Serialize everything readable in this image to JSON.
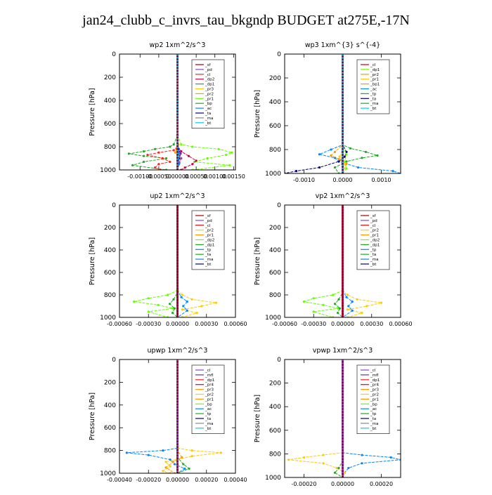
{
  "figure_title": "jan24_clubb_c_invrs_tau_bkgndp  BUDGET at275E,-17N",
  "chart_data": [
    {
      "type": "line",
      "title": "wp2   1xm^2/s^3",
      "ylabel": "Pressure [hPa]",
      "xlim": [
        -0.00155,
        0.00155
      ],
      "ylim": [
        1000,
        0
      ],
      "xticks": [
        -0.001,
        -0.0005,
        0.0,
        0.0005,
        0.001,
        0.0015
      ],
      "xtick_labels": [
        "-0.00100",
        "-0.00050",
        "0.00000",
        "0.00050",
        "0.00100",
        "0.00150"
      ],
      "yticks": [
        0,
        200,
        400,
        600,
        800,
        1000
      ],
      "legend": [
        "_sf",
        "_pd",
        "_cl",
        "_dp2",
        "_dp1",
        "_pr3",
        "_pr2",
        "_pr1",
        "_bp",
        "_ac",
        "_ta",
        "_ma",
        "_bt"
      ],
      "series": [
        {
          "name": "_pr2",
          "color": "#ff9900",
          "p": [
            0,
            700,
            780,
            820,
            850,
            870,
            900,
            930,
            960,
            1000
          ],
          "x": [
            0,
            0,
            2e-05,
            -3e-05,
            -6e-05,
            3e-05,
            8e-05,
            5e-05,
            2e-05,
            0
          ]
        },
        {
          "name": "_pr1",
          "color": "#66ff00",
          "p": [
            0,
            700,
            780,
            800,
            820,
            850,
            870,
            900,
            930,
            960,
            1000
          ],
          "x": [
            0,
            0,
            0.0001,
            0.0004,
            0.0011,
            0.00145,
            0.0013,
            0.0008,
            0.00045,
            0.0014,
            0.0004
          ]
        },
        {
          "name": "_dp1",
          "color": "#22aa22",
          "p": [
            0,
            700,
            780,
            800,
            820,
            840,
            860,
            880,
            900,
            930,
            960,
            1000
          ],
          "x": [
            0,
            0,
            -0.0001,
            -0.0002,
            -0.0006,
            -0.0009,
            -0.0013,
            -0.0009,
            -0.0003,
            -0.0009,
            -0.0012,
            -0.0003
          ]
        },
        {
          "name": "_cl",
          "color": "#ff2222",
          "p": [
            0,
            700,
            800,
            830,
            850,
            870,
            900,
            930,
            950,
            980,
            1000
          ],
          "x": [
            0,
            0,
            0,
            -0.0001,
            -0.0005,
            -0.0008,
            -0.0004,
            -0.0002,
            -0.0005,
            -0.0006,
            -0.00045
          ]
        },
        {
          "name": "_dp2",
          "color": "#cc0044",
          "p": [
            0,
            700,
            800,
            840,
            880,
            920,
            950,
            980,
            1000
          ],
          "x": [
            0,
            0,
            0,
            0.0001,
            0.0003,
            0.0005,
            0.0004,
            0.0002,
            0.0001
          ]
        },
        {
          "name": "_ta",
          "color": "#000080",
          "p": [
            0,
            700,
            820,
            860,
            900,
            940,
            1000
          ],
          "x": [
            0,
            0,
            3e-05,
            8e-05,
            4e-05,
            3e-05,
            0
          ]
        },
        {
          "name": "_pd",
          "color": "#8844cc",
          "p": [
            0,
            800,
            860,
            900,
            940,
            1000
          ],
          "x": [
            0,
            0,
            6e-05,
            0.0001,
            5e-05,
            0
          ]
        },
        {
          "name": "_ac",
          "color": "#0088ff",
          "p": [
            0,
            700,
            860,
            900,
            950,
            1000
          ],
          "x": [
            0,
            0,
            3e-05,
            2e-05,
            4e-05,
            0
          ]
        },
        {
          "name": "_sf",
          "color": "#aa0000",
          "p": [
            0,
            1000
          ],
          "x": [
            0,
            0
          ]
        },
        {
          "name": "_bt",
          "color": "#00ccee",
          "p": [
            0,
            1000
          ],
          "x": [
            0,
            0
          ]
        }
      ]
    },
    {
      "type": "line",
      "title": "wp3   1xm^{3} s^{-4}",
      "ylabel": "Pressure [hPa]",
      "xlim": [
        -0.0015,
        0.0015
      ],
      "ylim": [
        1000,
        0
      ],
      "xticks": [
        -0.001,
        0.0,
        0.001
      ],
      "xtick_labels": [
        "-0.0010",
        "0.0000",
        "0.0010"
      ],
      "yticks": [
        0,
        200,
        400,
        600,
        800,
        1000
      ],
      "legend": [
        "_cl",
        "_dp1",
        "_pr2",
        "_pr1",
        "_bp1",
        "_ac",
        "_tp",
        "_ta",
        "_ma",
        "_bt"
      ],
      "series": [
        {
          "name": "_ac",
          "color": "#0088ff",
          "p": [
            0,
            760,
            800,
            840,
            870,
            900,
            950,
            980,
            1000
          ],
          "x": [
            0,
            0,
            -0.0003,
            -0.0006,
            -0.0002,
            -0.0001,
            0.0004,
            0.0013,
            0.0015
          ]
        },
        {
          "name": "_tp",
          "color": "#22aa22",
          "p": [
            0,
            760,
            790,
            820,
            850,
            870,
            900,
            950,
            1000
          ],
          "x": [
            0,
            0,
            0.0002,
            0.0006,
            0.0009,
            0.0005,
            0.0001,
            -0.0002,
            -0.0001
          ]
        },
        {
          "name": "_ta",
          "color": "#000080",
          "p": [
            0,
            760,
            820,
            860,
            900,
            950,
            980,
            1000
          ],
          "x": [
            0,
            0,
            0.0001,
            5e-05,
            -0.0001,
            -0.0006,
            -0.0012,
            -0.0015
          ]
        },
        {
          "name": "_pr2",
          "color": "#ff9900",
          "p": [
            0,
            760,
            820,
            850,
            880,
            920,
            1000
          ],
          "x": [
            0,
            0,
            -0.0002,
            -0.0003,
            -0.0001,
            0.0001,
            0
          ]
        },
        {
          "name": "_dp1",
          "color": "#66ff00",
          "p": [
            0,
            780,
            840,
            900,
            960,
            1000
          ],
          "x": [
            0,
            0,
            0.0001,
            5e-05,
            0.0001,
            0
          ]
        },
        {
          "name": "_pr1",
          "color": "#ffcc00",
          "p": [
            0,
            800,
            860,
            920,
            1000
          ],
          "x": [
            0,
            0,
            -8e-05,
            5e-05,
            0
          ]
        },
        {
          "name": "_cl",
          "color": "#cc0000",
          "p": [
            0,
            1000
          ],
          "x": [
            0,
            0
          ]
        },
        {
          "name": "_bt",
          "color": "#00ccee",
          "p": [
            0,
            1000
          ],
          "x": [
            0,
            0
          ]
        }
      ]
    },
    {
      "type": "line",
      "title": "up2   1xm^2/s^3",
      "ylabel": "Pressure [hPa]",
      "xlim": [
        -0.0006,
        0.0006
      ],
      "ylim": [
        1000,
        0
      ],
      "xticks": [
        -0.0006,
        -0.0003,
        0.0,
        0.0003,
        0.0006
      ],
      "xtick_labels": [
        "-0.00060",
        "-0.00030",
        "0.00000",
        "0.00030",
        "0.00060"
      ],
      "yticks": [
        0,
        200,
        400,
        600,
        800,
        1000
      ],
      "legend": [
        "_sf",
        "_pd",
        "_cl",
        "_pr2",
        "_pr1",
        "_dp2",
        "_dp1",
        "_tp",
        "_ta",
        "_ma",
        "_bt"
      ],
      "series": [
        {
          "name": "_pr2",
          "color": "#ffcc00",
          "p": [
            0,
            760,
            800,
            840,
            870,
            900,
            930,
            960,
            1000
          ],
          "x": [
            0,
            0,
            5e-05,
            0.00015,
            0.0004,
            0.00025,
            5e-05,
            0.0002,
            5e-05
          ]
        },
        {
          "name": "_dp2",
          "color": "#66ff00",
          "p": [
            0,
            760,
            800,
            830,
            860,
            890,
            920,
            950,
            1000
          ],
          "x": [
            0,
            0,
            -0.0001,
            -0.0003,
            -0.00045,
            -0.0002,
            -5e-05,
            -0.0003,
            -0.0001
          ]
        },
        {
          "name": "_dp1",
          "color": "#22aa22",
          "p": [
            0,
            780,
            840,
            880,
            920,
            960,
            1000
          ],
          "x": [
            0,
            0,
            -4e-05,
            -8e-05,
            -3e-05,
            -5e-05,
            0
          ]
        },
        {
          "name": "_tp",
          "color": "#0088ff",
          "p": [
            0,
            760,
            820,
            860,
            900,
            940,
            1000
          ],
          "x": [
            0,
            0,
            4e-05,
            0.0001,
            6e-05,
            0.0001,
            0
          ]
        },
        {
          "name": "_pd",
          "color": "#8844cc",
          "p": [
            0,
            1000
          ],
          "x": [
            0,
            0
          ]
        },
        {
          "name": "_cl",
          "color": "#cc0000",
          "p": [
            0,
            1000
          ],
          "x": [
            0,
            0
          ]
        }
      ]
    },
    {
      "type": "line",
      "title": "vp2   1xm^2/s^3",
      "ylabel": "Pressure [hPa]",
      "xlim": [
        -0.0006,
        0.0006
      ],
      "ylim": [
        1000,
        0
      ],
      "xticks": [
        -0.0006,
        -0.0003,
        0.0,
        0.0003,
        0.0006
      ],
      "xtick_labels": [
        "-0.00060",
        "-0.00030",
        "0.00000",
        "0.00030",
        "0.00060"
      ],
      "yticks": [
        0,
        200,
        400,
        600,
        800,
        1000
      ],
      "legend": [
        "_sf",
        "_pd",
        "_cl",
        "_pr2",
        "_pr1",
        "_dp2",
        "_dp1",
        "_tp",
        "_ta",
        "_ma",
        "_bt"
      ],
      "series": [
        {
          "name": "_pr2",
          "color": "#ffcc00",
          "p": [
            0,
            760,
            800,
            840,
            870,
            900,
            930,
            960,
            1000
          ],
          "x": [
            0,
            0,
            5e-05,
            0.00015,
            0.0004,
            0.00025,
            5e-05,
            0.0002,
            5e-05
          ]
        },
        {
          "name": "_dp2",
          "color": "#66ff00",
          "p": [
            0,
            760,
            800,
            830,
            860,
            890,
            920,
            950,
            1000
          ],
          "x": [
            0,
            0,
            -0.0001,
            -0.0003,
            -0.0004,
            -0.0002,
            -5e-05,
            -0.0003,
            -0.0001
          ]
        },
        {
          "name": "_dp1",
          "color": "#22aa22",
          "p": [
            0,
            780,
            840,
            880,
            920,
            960,
            1000
          ],
          "x": [
            0,
            0,
            -4e-05,
            -8e-05,
            -3e-05,
            -5e-05,
            0
          ]
        },
        {
          "name": "_tp",
          "color": "#0088ff",
          "p": [
            0,
            760,
            820,
            860,
            900,
            940,
            1000
          ],
          "x": [
            0,
            0,
            4e-05,
            0.0001,
            6e-05,
            0.0001,
            0
          ]
        },
        {
          "name": "_pd",
          "color": "#8844cc",
          "p": [
            0,
            1000
          ],
          "x": [
            0,
            0
          ]
        },
        {
          "name": "_cl",
          "color": "#cc0000",
          "p": [
            0,
            1000
          ],
          "x": [
            0,
            0
          ]
        }
      ]
    },
    {
      "type": "line",
      "title": "upwp   1xm^2/s^3",
      "ylabel": "Pressure [hPa]",
      "xlim": [
        -0.0004,
        0.0004
      ],
      "ylim": [
        1000,
        0
      ],
      "xticks": [
        -0.0004,
        -0.0002,
        0.0,
        0.0002,
        0.0004
      ],
      "xtick_labels": [
        "-0.00040",
        "-0.00020",
        "0.00000",
        "0.00020",
        "0.00040"
      ],
      "yticks": [
        0,
        200,
        400,
        600,
        800,
        1000
      ],
      "legend": [
        "_cl",
        "_mfl",
        "_dp1",
        "_pr4",
        "_pr3",
        "_pr2",
        "_pr1",
        "_bp",
        "_ac",
        "_tp",
        "_ta",
        "_ma",
        "_bt"
      ],
      "series": [
        {
          "name": "_ac",
          "color": "#0088ff",
          "p": [
            0,
            780,
            800,
            820,
            840,
            880,
            920,
            960,
            1000
          ],
          "x": [
            0,
            0,
            -0.0001,
            -0.00035,
            -0.0002,
            -5e-05,
            -2e-05,
            5e-05,
            0
          ]
        },
        {
          "name": "_pr2",
          "color": "#ffcc00",
          "p": [
            0,
            780,
            800,
            820,
            850,
            900,
            940,
            980,
            1000
          ],
          "x": [
            0,
            0,
            0.0001,
            0.0003,
            0.0001,
            -8e-05,
            -5e-05,
            -0.0001,
            -5e-05
          ]
        },
        {
          "name": "_pr1",
          "color": "#ff9900",
          "p": [
            0,
            800,
            860,
            900,
            950,
            1000
          ],
          "x": [
            0,
            0,
            3e-05,
            -3e-05,
            -8e-05,
            -2e-05
          ]
        },
        {
          "name": "_tp",
          "color": "#22aa22",
          "p": [
            0,
            860,
            920,
            960,
            1000
          ],
          "x": [
            0,
            0,
            4e-05,
            8e-05,
            0
          ]
        },
        {
          "name": "_mfl",
          "color": "#663399",
          "p": [
            0,
            1000
          ],
          "x": [
            0,
            0
          ]
        },
        {
          "name": "_cl",
          "color": "#8844cc",
          "p": [
            0,
            1000
          ],
          "x": [
            0,
            0
          ]
        }
      ]
    },
    {
      "type": "line",
      "title": "vpwp   1xm^2/s^3",
      "ylabel": "Pressure [hPa]",
      "xlim": [
        -0.0003,
        0.0003
      ],
      "ylim": [
        1000,
        0
      ],
      "xticks": [
        -0.0002,
        0.0,
        0.0002
      ],
      "xtick_labels": [
        "-0.00020",
        "0.00000",
        "0.00020"
      ],
      "yticks": [
        0,
        200,
        400,
        600,
        800,
        1000
      ],
      "legend": [
        "_cl",
        "_mfl",
        "_dp1",
        "_pr4",
        "_pr3",
        "_pr2",
        "_pr1",
        "_bp",
        "_ac",
        "_tp",
        "_ta",
        "_ma",
        "_bt"
      ],
      "series": [
        {
          "name": "_ac",
          "color": "#0088ff",
          "p": [
            0,
            790,
            810,
            830,
            850,
            880,
            920,
            960,
            1000
          ],
          "x": [
            0,
            0,
            0.0001,
            0.00025,
            0.0003,
            0.0001,
            3e-05,
            1e-05,
            0
          ]
        },
        {
          "name": "_pr2",
          "color": "#ffcc00",
          "p": [
            0,
            790,
            810,
            830,
            850,
            880,
            920,
            960,
            1000
          ],
          "x": [
            0,
            0,
            -0.0001,
            -0.0002,
            -0.00028,
            -0.0001,
            -3e-05,
            1e-05,
            0
          ]
        },
        {
          "name": "_tp",
          "color": "#22aa22",
          "p": [
            0,
            860,
            920,
            960,
            1000
          ],
          "x": [
            0,
            0,
            -2e-05,
            -4e-05,
            0
          ]
        },
        {
          "name": "_mfl",
          "color": "#663399",
          "p": [
            0,
            1000
          ],
          "x": [
            0,
            0
          ]
        },
        {
          "name": "_cl",
          "color": "#8844cc",
          "p": [
            0,
            1000
          ],
          "x": [
            0,
            0
          ]
        }
      ]
    }
  ]
}
